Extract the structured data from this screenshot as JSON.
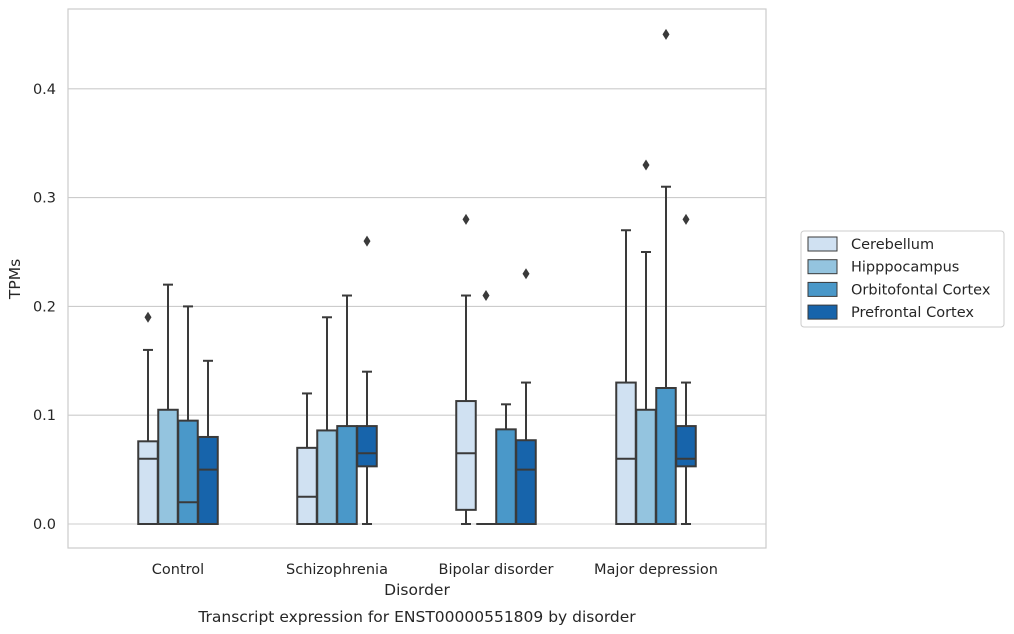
{
  "caption": "Transcript expression for ENST00000551809 by disorder",
  "chart_data": {
    "type": "box",
    "title": "",
    "xlabel": "Disorder",
    "ylabel": "TPMs",
    "ylim": [
      -0.022,
      0.475
    ],
    "yticks": [
      "0.0",
      "0.1",
      "0.2",
      "0.3",
      "0.4"
    ],
    "ytick_values": [
      0.0,
      0.1,
      0.2,
      0.3,
      0.4
    ],
    "grid": "horizontal",
    "legend_position": "right",
    "categories": [
      "Control",
      "Schizophrenia",
      "Bipolar disorder",
      "Major depression"
    ],
    "series": [
      {
        "name": "Cerebellum",
        "color": "#d0e1f2",
        "boxes": [
          {
            "q1": 0.0,
            "median": 0.06,
            "q3": 0.076,
            "whisker_low": 0.0,
            "whisker_high": 0.16,
            "outliers": [
              0.19
            ]
          },
          {
            "q1": 0.0,
            "median": 0.025,
            "q3": 0.07,
            "whisker_low": 0.0,
            "whisker_high": 0.12,
            "outliers": []
          },
          {
            "q1": 0.013,
            "median": 0.065,
            "q3": 0.113,
            "whisker_low": 0.0,
            "whisker_high": 0.21,
            "outliers": [
              0.28
            ]
          },
          {
            "q1": 0.0,
            "median": 0.06,
            "q3": 0.13,
            "whisker_low": 0.0,
            "whisker_high": 0.27,
            "outliers": []
          }
        ]
      },
      {
        "name": "Hipppocampus",
        "color": "#94c4df",
        "boxes": [
          {
            "q1": 0.0,
            "median": 0.0,
            "q3": 0.105,
            "whisker_low": 0.0,
            "whisker_high": 0.22,
            "outliers": []
          },
          {
            "q1": 0.0,
            "median": 0.0,
            "q3": 0.086,
            "whisker_low": 0.0,
            "whisker_high": 0.19,
            "outliers": []
          },
          {
            "q1": 0.0,
            "median": 0.0,
            "q3": 0.0,
            "whisker_low": 0.0,
            "whisker_high": 0.0,
            "outliers": [
              0.21
            ]
          },
          {
            "q1": 0.0,
            "median": 0.0,
            "q3": 0.105,
            "whisker_low": 0.0,
            "whisker_high": 0.25,
            "outliers": [
              0.33
            ]
          }
        ]
      },
      {
        "name": "Orbitofontal Cortex",
        "color": "#4a98c9",
        "boxes": [
          {
            "q1": 0.0,
            "median": 0.02,
            "q3": 0.095,
            "whisker_low": 0.0,
            "whisker_high": 0.2,
            "outliers": []
          },
          {
            "q1": 0.0,
            "median": 0.0,
            "q3": 0.09,
            "whisker_low": 0.0,
            "whisker_high": 0.21,
            "outliers": []
          },
          {
            "q1": 0.0,
            "median": 0.0,
            "q3": 0.087,
            "whisker_low": 0.0,
            "whisker_high": 0.11,
            "outliers": []
          },
          {
            "q1": 0.0,
            "median": 0.0,
            "q3": 0.125,
            "whisker_low": 0.0,
            "whisker_high": 0.31,
            "outliers": [
              0.45
            ]
          }
        ]
      },
      {
        "name": "Prefrontal Cortex",
        "color": "#1764ab",
        "boxes": [
          {
            "q1": 0.0,
            "median": 0.05,
            "q3": 0.08,
            "whisker_low": 0.0,
            "whisker_high": 0.15,
            "outliers": []
          },
          {
            "q1": 0.053,
            "median": 0.065,
            "q3": 0.09,
            "whisker_low": 0.0,
            "whisker_high": 0.14,
            "outliers": [
              0.26
            ]
          },
          {
            "q1": 0.0,
            "median": 0.05,
            "q3": 0.077,
            "whisker_low": 0.0,
            "whisker_high": 0.13,
            "outliers": [
              0.23
            ]
          },
          {
            "q1": 0.053,
            "median": 0.06,
            "q3": 0.09,
            "whisker_low": 0.0,
            "whisker_high": 0.13,
            "outliers": [
              0.28
            ]
          }
        ]
      }
    ]
  }
}
